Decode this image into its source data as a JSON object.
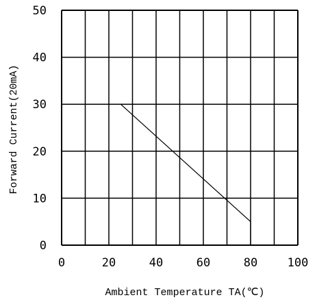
{
  "chart_data": {
    "type": "line",
    "xlabel": "Ambient Temperature TA(℃)",
    "ylabel": "Forward Current(20mA)",
    "xlim": [
      0,
      100
    ],
    "ylim": [
      0,
      50
    ],
    "x_ticks": [
      "0",
      "20",
      "40",
      "60",
      "80",
      "100"
    ],
    "y_ticks": [
      "0",
      "10",
      "20",
      "30",
      "40",
      "50"
    ],
    "grid": true,
    "series": [
      {
        "color": "#000000",
        "points": [
          {
            "x": 25,
            "y": 30
          },
          {
            "x": 80,
            "y": 5
          },
          {
            "x": 80,
            "y": 0
          }
        ]
      }
    ]
  }
}
